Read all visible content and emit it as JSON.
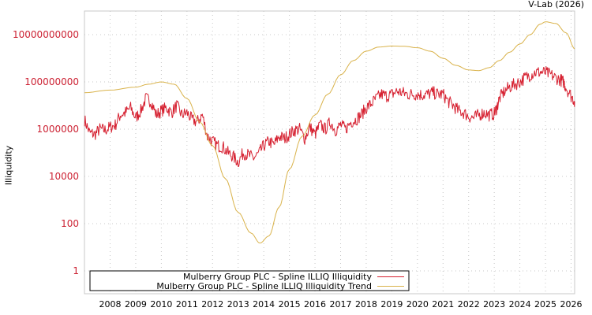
{
  "header": {
    "credit": "V-Lab (2026)"
  },
  "colors": {
    "series": "#d62030",
    "trend": "#d9b24a",
    "tick_label": "#cc2233",
    "grid": "#c8c8c8",
    "frame": "#c8c8c8"
  },
  "chart_data": {
    "type": "line",
    "title": "",
    "xlabel": "",
    "ylabel": "Illiquidity",
    "yscale": "log",
    "ylim": [
      0.3,
      100000000000.0
    ],
    "xlim": [
      2007.0,
      2026.15
    ],
    "grid": true,
    "legend_position": "bottom-left",
    "y_ticks": [
      "1",
      "100",
      "10000",
      "1000000",
      "100000000",
      "10000000000"
    ],
    "x_ticks": [
      "2008",
      "2009",
      "2010",
      "2011",
      "2012",
      "2013",
      "2014",
      "2015",
      "2016",
      "2017",
      "2018",
      "2019",
      "2020",
      "2021",
      "2022",
      "2023",
      "2024",
      "2025",
      "2026"
    ],
    "legend": [
      "Mulberry Group PLC - Spline ILLIQ Illiquidity",
      "Mulberry Group PLC - Spline ILLIQ Illiquidity Trend"
    ],
    "series": [
      {
        "name": "Mulberry Group PLC - Spline ILLIQ Illiquidity",
        "x": [
          2007.0,
          2007.2,
          2007.4,
          2007.6,
          2007.8,
          2008.0,
          2008.2,
          2008.4,
          2008.6,
          2008.8,
          2009.0,
          2009.2,
          2009.4,
          2009.6,
          2009.8,
          2010.0,
          2010.2,
          2010.4,
          2010.6,
          2010.8,
          2011.0,
          2011.2,
          2011.4,
          2011.6,
          2011.8,
          2012.0,
          2012.2,
          2012.4,
          2012.6,
          2012.8,
          2013.0,
          2013.2,
          2013.4,
          2013.6,
          2013.8,
          2014.0,
          2014.2,
          2014.4,
          2014.6,
          2014.8,
          2015.0,
          2015.2,
          2015.4,
          2015.6,
          2015.8,
          2016.0,
          2016.2,
          2016.4,
          2016.6,
          2016.8,
          2017.0,
          2017.2,
          2017.4,
          2017.6,
          2017.8,
          2018.0,
          2018.2,
          2018.4,
          2018.6,
          2018.8,
          2019.0,
          2019.2,
          2019.4,
          2019.6,
          2019.8,
          2020.0,
          2020.2,
          2020.4,
          2020.6,
          2020.8,
          2021.0,
          2021.2,
          2021.4,
          2021.6,
          2021.8,
          2022.0,
          2022.2,
          2022.4,
          2022.6,
          2022.8,
          2023.0,
          2023.1,
          2023.2,
          2023.4,
          2023.6,
          2023.8,
          2024.0,
          2024.2,
          2024.4,
          2024.6,
          2024.8,
          2025.0,
          2025.2,
          2025.4,
          2025.6,
          2025.7,
          2025.8,
          2026.0,
          2026.15
        ],
        "values": [
          2500000,
          700000,
          600000,
          1000000,
          900000,
          1200000,
          1500000,
          4000000,
          5000000,
          8000000,
          3000000,
          6000000,
          20000000,
          15000000,
          4000000,
          6000000,
          8000000,
          5000000,
          10000000,
          4000000,
          5000000,
          2500000,
          2000000,
          4000000,
          500000,
          300000,
          200000,
          180000,
          100000,
          70000,
          40000,
          100000,
          80000,
          60000,
          90000,
          200000,
          300000,
          220000,
          500000,
          400000,
          600000,
          900000,
          1000000,
          400000,
          1200000,
          600000,
          1500000,
          1000000,
          2000000,
          900000,
          1500000,
          1000000,
          2000000,
          2500000,
          4000000,
          8000000,
          12000000,
          20000000,
          30000000,
          25000000,
          30000000,
          40000000,
          35000000,
          30000000,
          30000000,
          30000000,
          28000000,
          30000000,
          35000000,
          30000000,
          30000000,
          15000000,
          10000000,
          6000000,
          5000000,
          3500000,
          3000000,
          4000000,
          5000000,
          4000000,
          4500000,
          8000000,
          20000000,
          40000000,
          60000000,
          80000000,
          100000000,
          150000000,
          200000000,
          250000000,
          260000000,
          250000000,
          200000000,
          150000000,
          120000000,
          100000000,
          60000000,
          25000000,
          15000000
        ]
      },
      {
        "name": "Mulberry Group PLC - Spline ILLIQ Illiquidity Trend",
        "x": [
          2007.0,
          2008.0,
          2009.0,
          2009.5,
          2010.0,
          2010.5,
          2011.0,
          2011.5,
          2012.0,
          2012.5,
          2013.0,
          2013.5,
          2013.85,
          2014.2,
          2014.6,
          2015.0,
          2015.5,
          2016.0,
          2016.5,
          2017.0,
          2017.5,
          2018.0,
          2018.5,
          2019.0,
          2019.5,
          2020.0,
          2020.5,
          2021.0,
          2021.5,
          2022.0,
          2022.4,
          2022.8,
          2023.2,
          2023.6,
          2024.0,
          2024.4,
          2024.8,
          2025.0,
          2025.4,
          2025.8,
          2026.15
        ],
        "values": [
          35000000,
          45000000,
          60000000,
          80000000,
          100000000,
          80000000,
          20000000,
          2000000,
          200000,
          8000,
          300,
          40,
          15,
          30,
          500,
          20000,
          500000,
          4000000,
          30000000,
          200000000,
          800000000,
          2000000000,
          3000000000,
          3300000000,
          3200000000,
          2800000000,
          2000000000,
          1000000000,
          500000000,
          320000000,
          300000000,
          400000000,
          800000000,
          1800000000,
          4000000000,
          10000000000,
          28000000000,
          35000000000,
          30000000000,
          12000000000,
          2500000000
        ]
      }
    ]
  }
}
